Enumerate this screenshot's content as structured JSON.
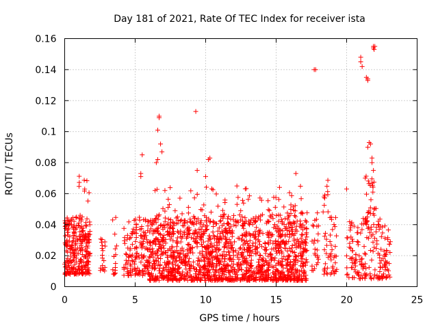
{
  "chart_data": {
    "type": "scatter",
    "title": "Day 181 of 2021, Rate Of TEC Index for receiver ista",
    "xlabel": "GPS time / hours",
    "ylabel": "ROTI / TECUs",
    "xlim": [
      0,
      25
    ],
    "ylim": [
      0,
      0.16
    ],
    "xticks": [
      0,
      5,
      10,
      15,
      20,
      25
    ],
    "yticks": [
      0,
      0.02,
      0.04,
      0.06,
      0.08,
      0.1,
      0.12,
      0.14,
      0.16
    ],
    "xtick_labels": [
      "0",
      "5",
      "10",
      "15",
      "20",
      "25"
    ],
    "ytick_labels": [
      "0",
      "0.02",
      "0.04",
      "0.06",
      "0.08",
      "0.1",
      "0.12",
      "0.14",
      "0.16"
    ],
    "grid": true,
    "marker": "+",
    "color": "#ff0000",
    "series": [
      {
        "name": "ROTI",
        "clusters": [
          {
            "x": [
              0.0,
              1.8
            ],
            "y": [
              0.008,
              0.045
            ],
            "n": 260
          },
          {
            "x": [
              1.0,
              1.8
            ],
            "y": [
              0.03,
              0.072
            ],
            "n": 25
          },
          {
            "x": [
              2.5,
              2.9
            ],
            "y": [
              0.01,
              0.032
            ],
            "n": 18
          },
          {
            "x": [
              3.4,
              3.7
            ],
            "y": [
              0.008,
              0.046
            ],
            "n": 16
          },
          {
            "x": [
              4.2,
              6.0
            ],
            "y": [
              0.007,
              0.045
            ],
            "n": 150
          },
          {
            "x": [
              6.0,
              17.2
            ],
            "y": [
              0.004,
              0.045
            ],
            "n": 1500
          },
          {
            "x": [
              6.0,
              17.2
            ],
            "y": [
              0.045,
              0.065
            ],
            "n": 90
          },
          {
            "x": [
              17.5,
              18.1
            ],
            "y": [
              0.01,
              0.048
            ],
            "n": 25
          },
          {
            "x": [
              18.3,
              18.7
            ],
            "y": [
              0.008,
              0.072
            ],
            "n": 25
          },
          {
            "x": [
              18.8,
              19.3
            ],
            "y": [
              0.008,
              0.045
            ],
            "n": 30
          },
          {
            "x": [
              20.0,
              23.1
            ],
            "y": [
              0.005,
              0.045
            ],
            "n": 180
          },
          {
            "x": [
              21.3,
              22.1
            ],
            "y": [
              0.04,
              0.072
            ],
            "n": 30
          }
        ],
        "extra_points": [
          [
            6.5,
            0.08
          ],
          [
            6.6,
            0.082
          ],
          [
            6.6,
            0.101
          ],
          [
            6.7,
            0.109
          ],
          [
            6.7,
            0.11
          ],
          [
            6.8,
            0.092
          ],
          [
            6.9,
            0.087
          ],
          [
            5.5,
            0.085
          ],
          [
            5.4,
            0.073
          ],
          [
            5.4,
            0.071
          ],
          [
            9.3,
            0.113
          ],
          [
            10.3,
            0.083
          ],
          [
            10.2,
            0.082
          ],
          [
            9.4,
            0.075
          ],
          [
            10.0,
            0.071
          ],
          [
            17.8,
            0.14
          ],
          [
            17.7,
            0.14
          ],
          [
            20.0,
            0.063
          ],
          [
            16.4,
            0.073
          ],
          [
            21.0,
            0.148
          ],
          [
            21.0,
            0.145
          ],
          [
            21.1,
            0.142
          ],
          [
            21.4,
            0.135
          ],
          [
            21.5,
            0.133
          ],
          [
            21.5,
            0.134
          ],
          [
            21.6,
            0.093
          ],
          [
            21.7,
            0.092
          ],
          [
            21.5,
            0.09
          ],
          [
            21.9,
            0.155
          ],
          [
            21.9,
            0.154
          ],
          [
            21.95,
            0.153
          ],
          [
            22.0,
            0.155
          ],
          [
            21.8,
            0.083
          ],
          [
            21.8,
            0.08
          ],
          [
            21.9,
            0.075
          ]
        ]
      }
    ]
  }
}
